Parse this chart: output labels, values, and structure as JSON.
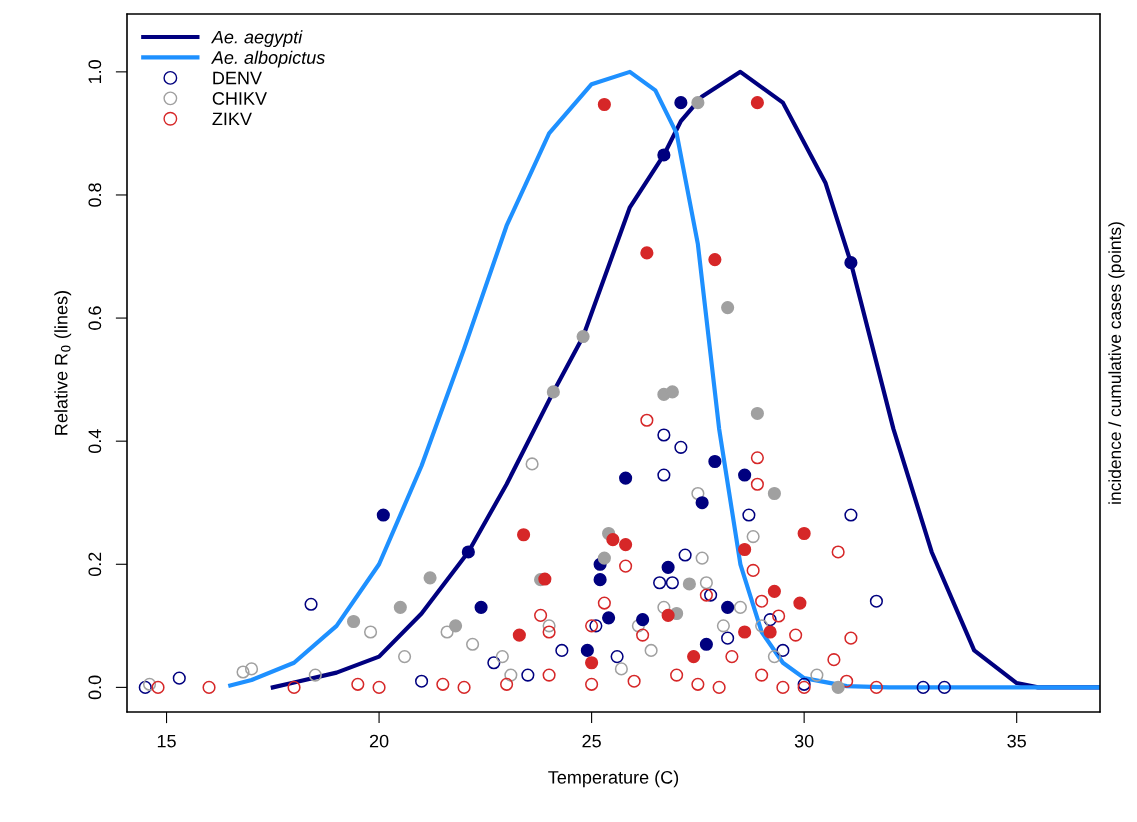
{
  "chart_data": {
    "type": "line",
    "xlabel": "Temperature (C)",
    "ylabel": "Relative R$_{0}$ (lines)",
    "y2label": "incidence / cumulative cases (points)",
    "xlim": [
      14.07,
      36.96
    ],
    "xticks": [
      15,
      20,
      25,
      30,
      35
    ],
    "ylim": [
      -0.04,
      1.094
    ],
    "yticks": [
      {
        "value": 0,
        "label": "0.0"
      },
      {
        "value": 0.2,
        "label": "0.2"
      },
      {
        "value": 0.4,
        "label": "0.4"
      },
      {
        "value": 0.6,
        "label": "0.6"
      },
      {
        "value": 0.8,
        "label": "0.8"
      },
      {
        "value": 1.0,
        "label": "1.0"
      }
    ],
    "grid": false,
    "legend": "top left",
    "series": [
      {
        "name": "Ae. aegypti",
        "color": "#00007f",
        "marker": "none",
        "x": [
          17.5,
          18,
          19,
          20,
          21,
          22.1,
          23,
          24.1,
          24.8,
          25.9,
          26.7,
          27.1,
          27.6,
          28.5,
          29.5,
          30.5,
          31.1,
          32.1,
          33,
          34,
          35,
          35.5,
          36.96
        ],
        "values": [
          0,
          0.008,
          0.024,
          0.05,
          0.12,
          0.22,
          0.33,
          0.48,
          0.57,
          0.78,
          0.865,
          0.92,
          0.96,
          1.0,
          0.95,
          0.82,
          0.69,
          0.42,
          0.22,
          0.06,
          0.007,
          0,
          0
        ]
      },
      {
        "name": "Ae. albopictus",
        "color": "#1e90ff",
        "marker": "none",
        "x": [
          16.5,
          17,
          18,
          19,
          20,
          21,
          22,
          23,
          24,
          25,
          25.9,
          26.5,
          27,
          27.5,
          28,
          28.5,
          29,
          29.5,
          30,
          31,
          32,
          36.96
        ],
        "values": [
          0.003,
          0.012,
          0.04,
          0.1,
          0.2,
          0.36,
          0.55,
          0.75,
          0.9,
          0.98,
          1.0,
          0.97,
          0.9,
          0.72,
          0.42,
          0.2,
          0.09,
          0.04,
          0.015,
          0.002,
          0,
          0
        ]
      },
      {
        "name": "DENV",
        "type": "scatter",
        "color": "#00007f",
        "marker": "circle",
        "x": [
          15.3,
          18.4,
          26.7,
          26.7,
          27.1,
          27.2,
          28.7,
          31.1,
          31.7,
          32.8,
          33.3,
          26.6,
          26.9,
          27.8,
          29.2,
          24.3,
          22.7,
          25.1,
          25.6,
          28.2,
          29.5,
          14.5,
          21,
          23.5,
          30
        ],
        "values": [
          0.015,
          0.135,
          0.41,
          0.345,
          0.39,
          0.215,
          0.28,
          0.28,
          0.14,
          0,
          0,
          0.17,
          0.17,
          0.15,
          0.11,
          0.06,
          0.04,
          0.1,
          0.05,
          0.08,
          0.06,
          0,
          0.01,
          0.02,
          0.005
        ]
      },
      {
        "name": "CHIKV",
        "type": "scatter",
        "color": "#a0a0a0",
        "marker": "circle",
        "x": [
          14.6,
          16.8,
          17,
          19.8,
          20.6,
          21.6,
          22.2,
          23.6,
          24,
          26.1,
          26.7,
          27.5,
          27.6,
          27.7,
          28.1,
          28.5,
          28.8,
          29,
          29.3,
          22.9,
          25.7,
          18.5,
          30.3,
          23.1,
          26.4
        ],
        "values": [
          0.005,
          0.025,
          0.03,
          0.09,
          0.05,
          0.09,
          0.07,
          0.363,
          0.1,
          0.1,
          0.13,
          0.315,
          0.21,
          0.17,
          0.1,
          0.13,
          0.245,
          0.1,
          0.05,
          0.05,
          0.03,
          0.02,
          0.02,
          0.02,
          0.06
        ]
      },
      {
        "name": "ZIKV",
        "type": "scatter",
        "color": "#d62728",
        "marker": "circle",
        "x": [
          26.3,
          28.9,
          28.9,
          25.8,
          28.8,
          29.4,
          29.8,
          30.8,
          31.1,
          25.3,
          25,
          23.8,
          24,
          26.2,
          27.7,
          28.3,
          29,
          30.7,
          31.7,
          14.8,
          16,
          18,
          20,
          22,
          24,
          26,
          27,
          28,
          29,
          30,
          31,
          19.5,
          21.5,
          23,
          25,
          27.5,
          29.5
        ],
        "values": [
          0.434,
          0.373,
          0.33,
          0.197,
          0.19,
          0.116,
          0.085,
          0.22,
          0.08,
          0.137,
          0.1,
          0.117,
          0.09,
          0.085,
          0.15,
          0.05,
          0.14,
          0.045,
          0,
          0,
          0,
          0,
          0,
          0,
          0.02,
          0.01,
          0.02,
          0,
          0.02,
          0,
          0.01,
          0.005,
          0.005,
          0.005,
          0.005,
          0.005,
          0
        ]
      },
      {
        "type": "scatter",
        "color": "#00007f",
        "marker": "circle",
        "x": [
          20.1,
          22.1,
          22.4,
          25.2,
          25.2,
          25.4,
          25.8,
          26.2,
          26.7,
          26.8,
          27.1,
          27.6,
          27.9,
          28.2,
          28.6,
          31.1,
          24.9,
          27.7
        ],
        "values": [
          0.28,
          0.22,
          0.13,
          0.175,
          0.2,
          0.113,
          0.34,
          0.11,
          0.865,
          0.195,
          0.95,
          0.3,
          0.367,
          0.13,
          0.345,
          0.69,
          0.06,
          0.07
        ]
      },
      {
        "type": "scatter",
        "color": "#a0a0a0",
        "marker": "circle",
        "x": [
          19.4,
          20.5,
          21.2,
          24.1,
          24.8,
          25.3,
          25.4,
          26.7,
          26.9,
          27.3,
          27.5,
          28.2,
          28.9,
          29.3,
          21.8,
          23.8,
          30.8,
          27
        ],
        "values": [
          0.107,
          0.13,
          0.178,
          0.48,
          0.57,
          0.21,
          0.25,
          0.476,
          0.48,
          0.168,
          0.95,
          0.617,
          0.445,
          0.315,
          0.1,
          0.175,
          0,
          0.12
        ]
      },
      {
        "type": "scatter",
        "color": "#d62728",
        "marker": "circle",
        "x": [
          25.3,
          28.9,
          26.3,
          27.9,
          23.4,
          23.9,
          25.5,
          25.8,
          26.8,
          27.4,
          28.6,
          29.3,
          29.9,
          30,
          28.6,
          29.2,
          23.3,
          25
        ],
        "values": [
          0.947,
          0.95,
          0.706,
          0.695,
          0.248,
          0.176,
          0.24,
          0.232,
          0.117,
          0.05,
          0.224,
          0.156,
          0.137,
          0.25,
          0.09,
          0.09,
          0.085,
          0.04
        ]
      }
    ]
  }
}
